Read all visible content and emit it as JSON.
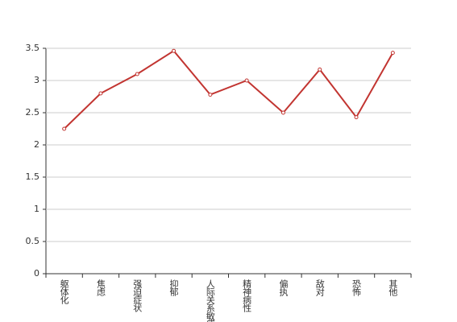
{
  "chart_data": {
    "type": "line",
    "categories": [
      "躯体化",
      "焦虑",
      "强迫症状",
      "抑郁",
      "人际关系敏感",
      "精神病性",
      "偏执",
      "敌对",
      "恐怖",
      "其他"
    ],
    "values": [
      2.25,
      2.8,
      3.1,
      3.46,
      2.78,
      3.0,
      2.5,
      3.17,
      2.43,
      3.43
    ],
    "color": "#c23531",
    "ylim": [
      0,
      3.5
    ],
    "yticks": [
      0,
      0.5,
      1,
      1.5,
      2,
      2.5,
      3,
      3.5
    ],
    "grid": true
  }
}
